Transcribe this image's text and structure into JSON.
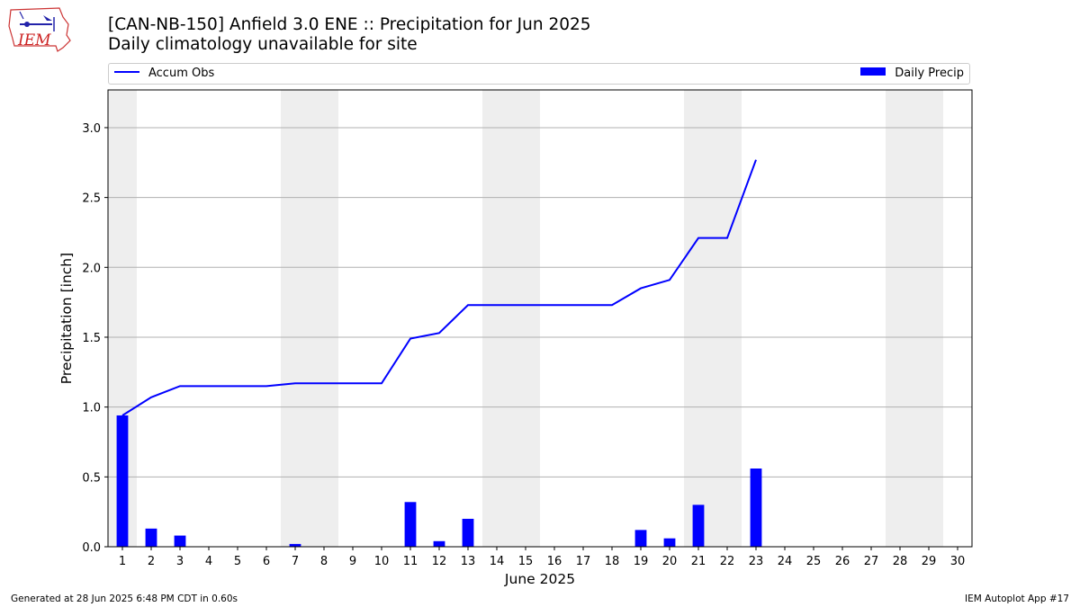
{
  "header": {
    "logo_text": "IEM",
    "title": "[CAN-NB-150] Anfield 3.0 ENE :: Precipitation for Jun 2025",
    "subtitle": "Daily climatology unavailable for site"
  },
  "legend": {
    "line_label": "Accum Obs",
    "bar_label": "Daily Precip"
  },
  "footer": {
    "left": "Generated at 28 Jun 2025 6:48 PM CDT in 0.60s",
    "right": "IEM Autoplot App #17"
  },
  "colors": {
    "series": "#0000ff",
    "weekend_shade": "#eeeeee",
    "grid": "#b0b0b0"
  },
  "chart_data": {
    "type": "bar",
    "title": "[CAN-NB-150] Anfield 3.0 ENE :: Precipitation for Jun 2025",
    "xlabel": "June 2025",
    "ylabel": "Precipitation [inch]",
    "xlim": [
      0.5,
      30.5
    ],
    "ylim": [
      0,
      3.27
    ],
    "yticks": [
      0.0,
      0.5,
      1.0,
      1.5,
      2.0,
      2.5,
      3.0
    ],
    "ytick_labels": [
      "0.0",
      "0.5",
      "1.0",
      "1.5",
      "2.0",
      "2.5",
      "3.0"
    ],
    "categories": [
      "1",
      "2",
      "3",
      "4",
      "5",
      "6",
      "7",
      "8",
      "9",
      "10",
      "11",
      "12",
      "13",
      "14",
      "15",
      "16",
      "17",
      "18",
      "19",
      "20",
      "21",
      "22",
      "23",
      "24",
      "25",
      "26",
      "27",
      "28",
      "29",
      "30"
    ],
    "grid": "horizontal",
    "legend_position": "top",
    "weekend_days": [
      1,
      7,
      8,
      14,
      15,
      21,
      22,
      28,
      29
    ],
    "series": [
      {
        "name": "Daily Precip",
        "kind": "bar",
        "x": [
          1,
          2,
          3,
          4,
          5,
          6,
          7,
          8,
          9,
          10,
          11,
          12,
          13,
          14,
          15,
          16,
          17,
          18,
          19,
          20,
          21,
          22,
          23
        ],
        "values": [
          0.94,
          0.13,
          0.08,
          0,
          0,
          0,
          0.02,
          0,
          0,
          0,
          0.32,
          0.04,
          0.2,
          0,
          0,
          0,
          0,
          0,
          0.12,
          0.06,
          0.3,
          0,
          0.56
        ]
      },
      {
        "name": "Accum Obs",
        "kind": "line",
        "x": [
          1,
          2,
          3,
          4,
          5,
          6,
          7,
          8,
          9,
          10,
          11,
          12,
          13,
          14,
          15,
          16,
          17,
          18,
          19,
          20,
          21,
          22,
          23
        ],
        "values": [
          0.94,
          1.07,
          1.15,
          1.15,
          1.15,
          1.15,
          1.17,
          1.17,
          1.17,
          1.17,
          1.49,
          1.53,
          1.73,
          1.73,
          1.73,
          1.73,
          1.73,
          1.73,
          1.85,
          1.91,
          2.21,
          2.21,
          2.77
        ]
      }
    ]
  }
}
